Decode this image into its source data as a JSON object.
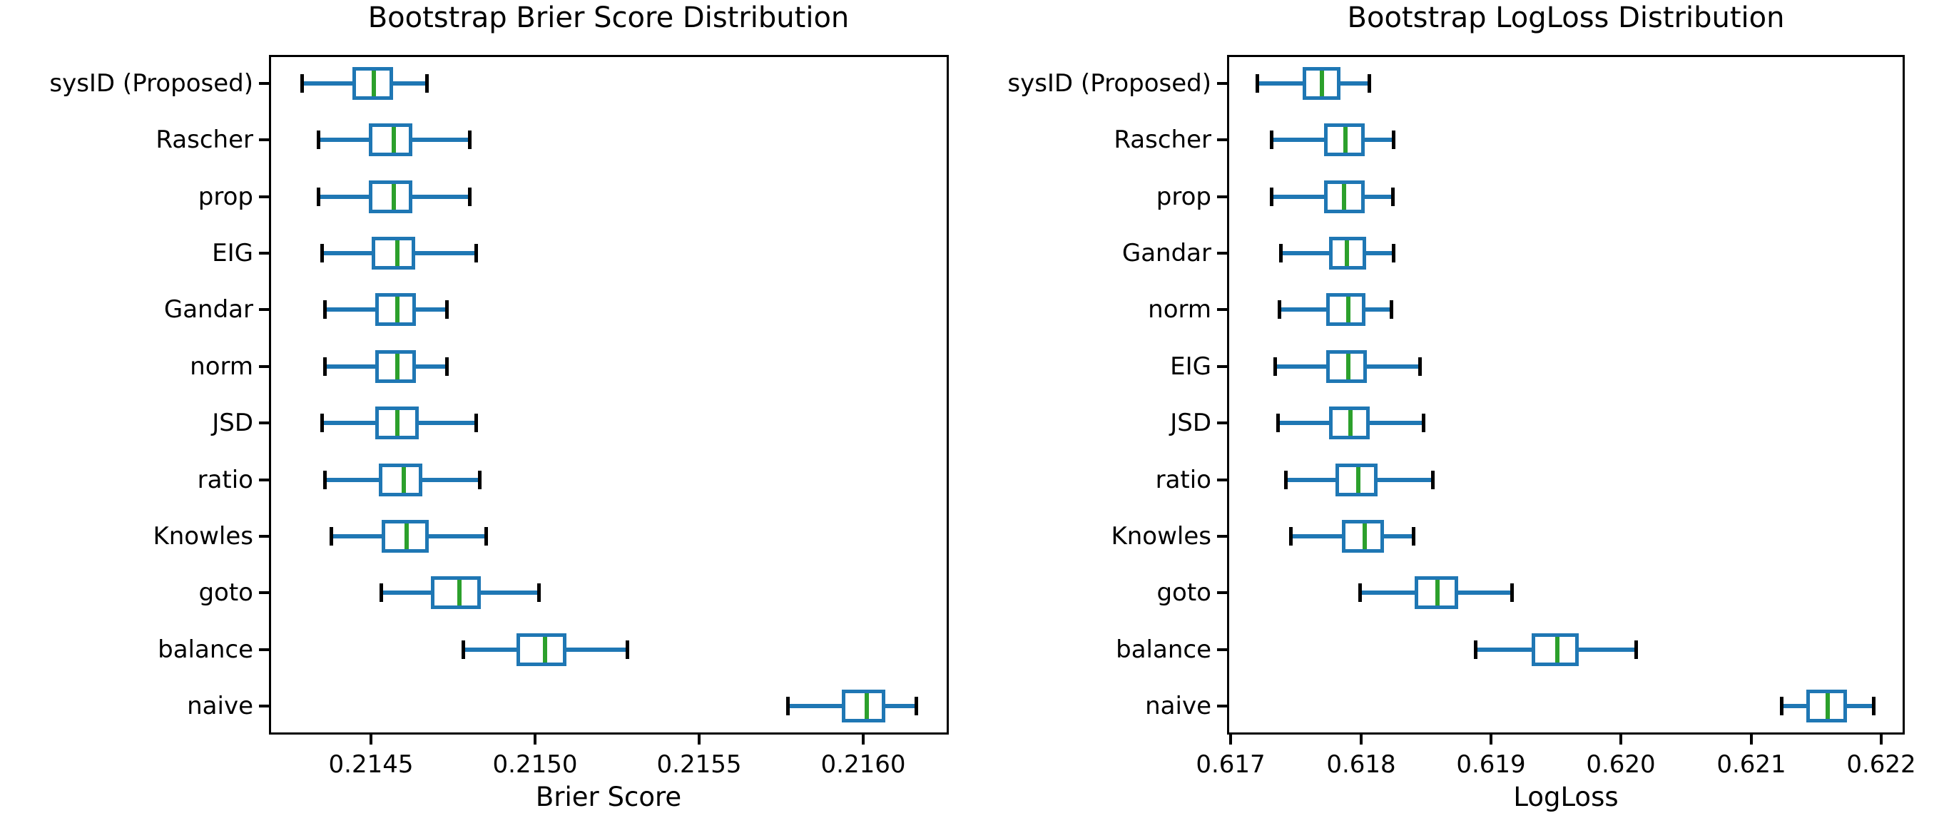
{
  "figure": {
    "background": "#ffffff"
  },
  "colors": {
    "box_edge": "#1f77b4",
    "whisker": "#1f77b4",
    "cap": "#000000",
    "median": "#2ca02c",
    "axis": "#000000",
    "text": "#000000"
  },
  "chart_data": [
    {
      "type": "boxplot",
      "orientation": "horizontal",
      "title": "Bootstrap Brier Score Distribution",
      "xlabel": "Brier Score",
      "grid": false,
      "legend": false,
      "xlim": [
        0.21419,
        0.21626
      ],
      "xticks": [
        {
          "value": 0.2145,
          "label": "0.2145"
        },
        {
          "value": 0.215,
          "label": "0.2150"
        },
        {
          "value": 0.2155,
          "label": "0.2155"
        },
        {
          "value": 0.216,
          "label": "0.2160"
        }
      ],
      "rows": [
        {
          "label": "sysID (Proposed)",
          "whislo": 0.21429,
          "q1": 0.21445,
          "med": 0.21451,
          "q3": 0.21456,
          "whishi": 0.21467
        },
        {
          "label": "Rascher",
          "whislo": 0.21434,
          "q1": 0.2145,
          "med": 0.21457,
          "q3": 0.21462,
          "whishi": 0.2148
        },
        {
          "label": "prop",
          "whislo": 0.21434,
          "q1": 0.2145,
          "med": 0.21457,
          "q3": 0.21462,
          "whishi": 0.2148
        },
        {
          "label": "EIG",
          "whislo": 0.21435,
          "q1": 0.21451,
          "med": 0.21458,
          "q3": 0.21463,
          "whishi": 0.21482
        },
        {
          "label": "Gandar",
          "whislo": 0.21436,
          "q1": 0.21452,
          "med": 0.21458,
          "q3": 0.21463,
          "whishi": 0.21473
        },
        {
          "label": "norm",
          "whislo": 0.21436,
          "q1": 0.21452,
          "med": 0.21458,
          "q3": 0.21463,
          "whishi": 0.21473
        },
        {
          "label": "JSD",
          "whislo": 0.21435,
          "q1": 0.21452,
          "med": 0.21458,
          "q3": 0.21464,
          "whishi": 0.21482
        },
        {
          "label": "ratio",
          "whislo": 0.21436,
          "q1": 0.21453,
          "med": 0.2146,
          "q3": 0.21465,
          "whishi": 0.21483
        },
        {
          "label": "Knowles",
          "whislo": 0.21438,
          "q1": 0.21454,
          "med": 0.21461,
          "q3": 0.21467,
          "whishi": 0.21485
        },
        {
          "label": "goto",
          "whislo": 0.21453,
          "q1": 0.21469,
          "med": 0.21477,
          "q3": 0.21483,
          "whishi": 0.21501
        },
        {
          "label": "balance",
          "whislo": 0.21478,
          "q1": 0.21495,
          "med": 0.21503,
          "q3": 0.21509,
          "whishi": 0.21528
        },
        {
          "label": "naive",
          "whislo": 0.21577,
          "q1": 0.21594,
          "med": 0.21601,
          "q3": 0.21606,
          "whishi": 0.21616
        }
      ]
    },
    {
      "type": "boxplot",
      "orientation": "horizontal",
      "title": "Bootstrap LogLoss Distribution",
      "xlabel": "LogLoss",
      "grid": false,
      "legend": false,
      "xlim": [
        0.61697,
        0.62218
      ],
      "xticks": [
        {
          "value": 0.617,
          "label": "0.617"
        },
        {
          "value": 0.618,
          "label": "0.618"
        },
        {
          "value": 0.619,
          "label": "0.619"
        },
        {
          "value": 0.62,
          "label": "0.620"
        },
        {
          "value": 0.621,
          "label": "0.621"
        },
        {
          "value": 0.622,
          "label": "0.622"
        }
      ],
      "rows": [
        {
          "label": "sysID (Proposed)",
          "whislo": 0.6172,
          "q1": 0.61757,
          "med": 0.6177,
          "q3": 0.61783,
          "whishi": 0.61806
        },
        {
          "label": "Rascher",
          "whislo": 0.61731,
          "q1": 0.61773,
          "med": 0.61788,
          "q3": 0.61801,
          "whishi": 0.61825
        },
        {
          "label": "prop",
          "whislo": 0.61731,
          "q1": 0.61773,
          "med": 0.61787,
          "q3": 0.61801,
          "whishi": 0.61824
        },
        {
          "label": "Gandar",
          "whislo": 0.61738,
          "q1": 0.61777,
          "med": 0.61789,
          "q3": 0.61802,
          "whishi": 0.61825
        },
        {
          "label": "norm",
          "whislo": 0.61737,
          "q1": 0.61775,
          "med": 0.6179,
          "q3": 0.61802,
          "whishi": 0.61823
        },
        {
          "label": "EIG",
          "whislo": 0.61734,
          "q1": 0.61775,
          "med": 0.6179,
          "q3": 0.61803,
          "whishi": 0.61845
        },
        {
          "label": "JSD",
          "whislo": 0.61736,
          "q1": 0.61777,
          "med": 0.61792,
          "q3": 0.61805,
          "whishi": 0.61848
        },
        {
          "label": "ratio",
          "whislo": 0.61742,
          "q1": 0.61782,
          "med": 0.61798,
          "q3": 0.61811,
          "whishi": 0.61855
        },
        {
          "label": "Knowles",
          "whislo": 0.61746,
          "q1": 0.61787,
          "med": 0.61803,
          "q3": 0.61816,
          "whishi": 0.6184
        },
        {
          "label": "goto",
          "whislo": 0.61799,
          "q1": 0.61843,
          "med": 0.61859,
          "q3": 0.61873,
          "whishi": 0.61916
        },
        {
          "label": "balance",
          "whislo": 0.61888,
          "q1": 0.61933,
          "med": 0.61951,
          "q3": 0.61966,
          "whishi": 0.62011
        },
        {
          "label": "naive",
          "whislo": 0.62123,
          "q1": 0.62144,
          "med": 0.62159,
          "q3": 0.62172,
          "whishi": 0.62194
        }
      ]
    }
  ]
}
